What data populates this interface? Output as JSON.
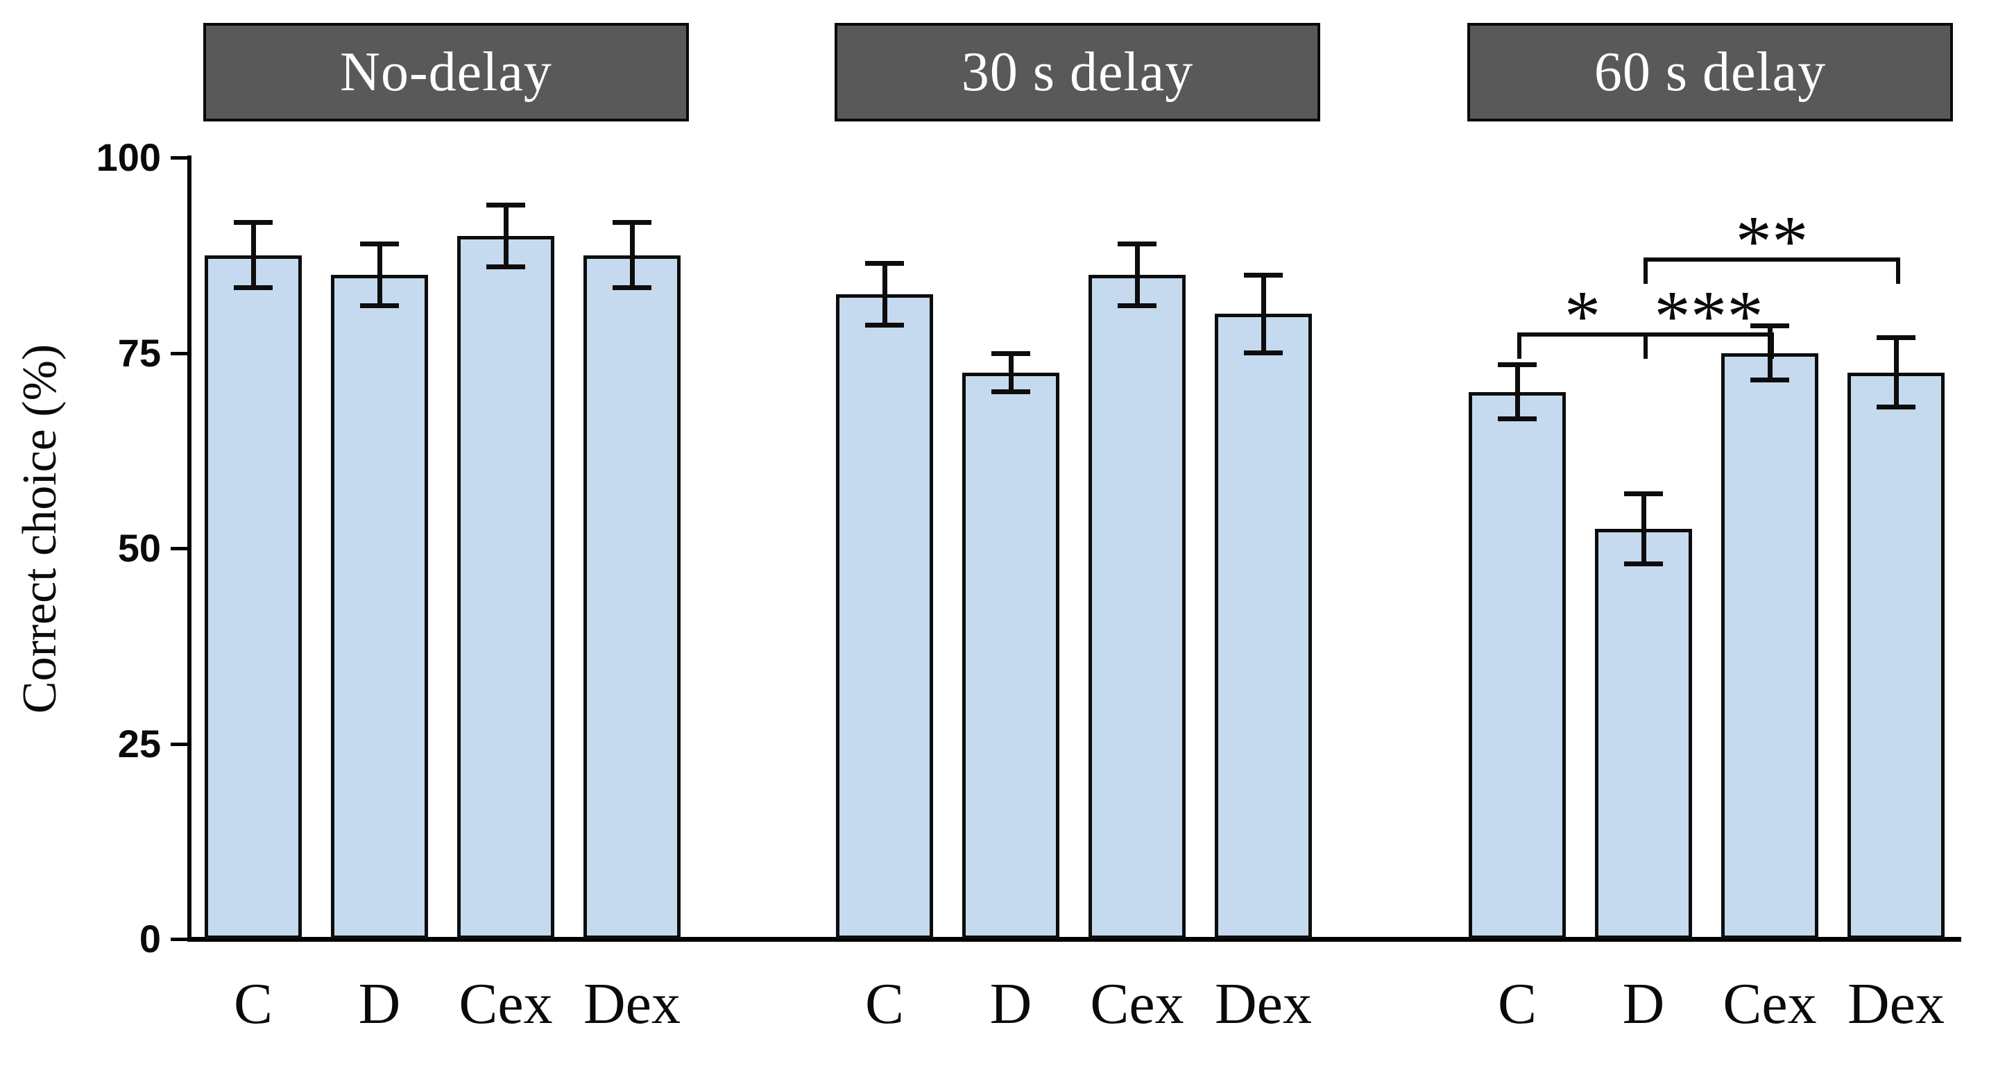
{
  "chart_data": {
    "type": "bar",
    "title": "",
    "ylabel": "Correct choice (%)",
    "xlabel": "",
    "ylim": [
      0,
      100
    ],
    "yticks": [
      0,
      25,
      50,
      75,
      100
    ],
    "grid": false,
    "legend_position": "none",
    "categories": [
      "C",
      "D",
      "Cex",
      "Dex"
    ],
    "groups": [
      {
        "label": "No-delay",
        "values": [
          87.5,
          85.0,
          90.0,
          87.5
        ],
        "errors": [
          4.2,
          4.0,
          4.0,
          4.2
        ]
      },
      {
        "label": "30 s delay",
        "values": [
          82.5,
          72.5,
          85.0,
          80.0
        ],
        "errors": [
          4.0,
          2.5,
          4.0,
          5.0
        ]
      },
      {
        "label": "60 s delay",
        "values": [
          70.0,
          52.5,
          75.0,
          72.5
        ],
        "errors": [
          3.5,
          4.5,
          3.5,
          4.5
        ]
      }
    ],
    "significance": [
      {
        "group": "60 s delay",
        "from": "C",
        "to": "D",
        "label": "*",
        "row": 0
      },
      {
        "group": "60 s delay",
        "from": "D",
        "to": "Cex",
        "label": "***",
        "row": 0
      },
      {
        "group": "60 s delay",
        "from": "D",
        "to": "Dex",
        "label": "**",
        "row": 1
      }
    ],
    "bar_color": "#C5DAEE",
    "bar_border_color": "#0d0d0d",
    "header_bg": "#595959",
    "header_text_color": "#FFFFFF",
    "axis_color": "#000000"
  }
}
